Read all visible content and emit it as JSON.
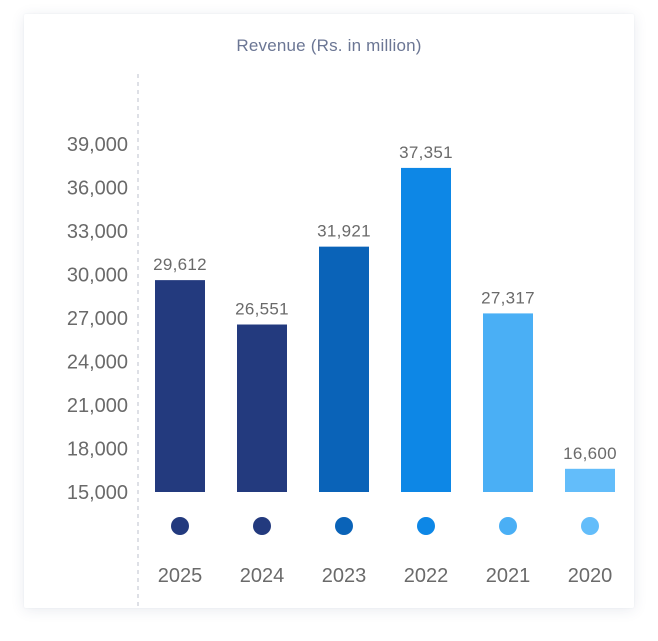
{
  "chart_data": {
    "type": "bar",
    "title": "Revenue (Rs. in million)",
    "xlabel": "",
    "ylabel": "",
    "categories": [
      "2025",
      "2024",
      "2023",
      "2022",
      "2021",
      "2020"
    ],
    "values": [
      29612,
      26551,
      31921,
      37351,
      27317,
      16600
    ],
    "value_labels": [
      "29,612",
      "26,551",
      "31,921",
      "37,351",
      "27,317",
      "16,600"
    ],
    "bar_colors": [
      "#233a7e",
      "#233a7e",
      "#0a63b8",
      "#0d87e6",
      "#4aaff5",
      "#63bdfa"
    ],
    "ylim": [
      15000,
      39000
    ],
    "yticks": [
      15000,
      18000,
      21000,
      24000,
      27000,
      30000,
      33000,
      36000,
      39000
    ],
    "ytick_labels": [
      "15,000",
      "18,000",
      "21,000",
      "24,000",
      "27,000",
      "30,000",
      "33,000",
      "36,000",
      "39,000"
    ],
    "grid": false,
    "legend": "none"
  }
}
